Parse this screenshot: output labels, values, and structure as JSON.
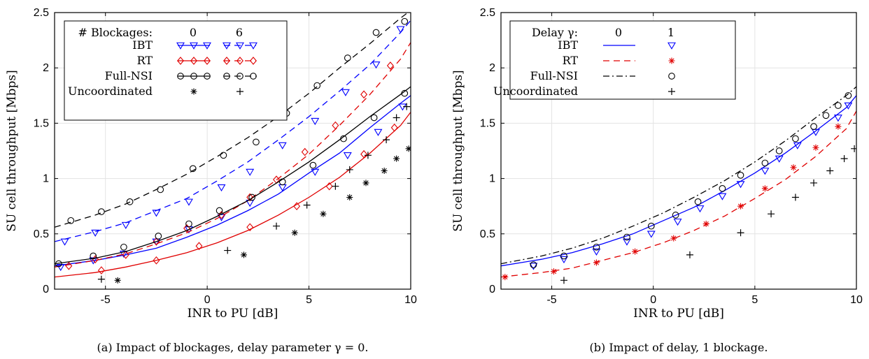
{
  "chart_data": [
    {
      "type": "line",
      "xlabel": "INR to PU [dB]",
      "ylabel": "SU cell throughput [Mbps]",
      "caption": "(a) Impact of blockages, delay parameter γ = 0.",
      "xlim": [
        -7.5,
        10
      ],
      "ylim": [
        0,
        2.5
      ],
      "xticks": [
        "-5",
        "0",
        "5",
        "10"
      ],
      "yticks": [
        "0",
        "0.5",
        "1",
        "1.5",
        "2",
        "2.5"
      ],
      "grid": true,
      "legend_position": "top-left",
      "legend_header": {
        "label": "# Blockages:",
        "col1": "0",
        "col2": "6"
      },
      "legend_rows": [
        "IBT",
        "RT",
        "Full-NSI",
        "Uncoordinated"
      ],
      "series": [
        {
          "name": "IBT",
          "variant": "0",
          "color": "#0000ff",
          "dash": "solid",
          "marker": "triangle-down",
          "x": [
            -7.5,
            -5.5,
            -4,
            -2.5,
            -1,
            0.5,
            2,
            3.5,
            5,
            6.5,
            8,
            9.5,
            10
          ],
          "y": [
            0.21,
            0.26,
            0.31,
            0.37,
            0.47,
            0.58,
            0.71,
            0.86,
            1.05,
            1.23,
            1.46,
            1.68,
            1.75
          ],
          "mx": [
            -7.2,
            -5.6,
            -4.1,
            -2.5,
            -0.9,
            0.7,
            2.1,
            3.7,
            5.3,
            6.9,
            8.4,
            9.6
          ],
          "my": [
            0.2,
            0.26,
            0.32,
            0.43,
            0.54,
            0.65,
            0.78,
            0.92,
            1.06,
            1.21,
            1.42,
            1.65
          ]
        },
        {
          "name": "IBT",
          "variant": "6",
          "color": "#0000ff",
          "dash": "dash",
          "marker": "triangle-down",
          "x": [
            -7.5,
            -5.5,
            -4,
            -2.5,
            -1,
            0.5,
            2,
            3.5,
            5,
            6.5,
            8,
            9.5,
            10
          ],
          "y": [
            0.43,
            0.52,
            0.6,
            0.71,
            0.82,
            0.98,
            1.15,
            1.35,
            1.56,
            1.79,
            2.03,
            2.32,
            2.43
          ],
          "mx": [
            -7.0,
            -5.5,
            -4.0,
            -2.5,
            -0.9,
            0.7,
            2.1,
            3.7,
            5.3,
            6.8,
            8.3,
            9.5
          ],
          "my": [
            0.43,
            0.51,
            0.58,
            0.69,
            0.79,
            0.92,
            1.06,
            1.3,
            1.52,
            1.78,
            2.03,
            2.35
          ]
        },
        {
          "name": "RT",
          "variant": "0",
          "color": "#e00000",
          "dash": "solid",
          "marker": "diamond",
          "x": [
            -7.5,
            -5.5,
            -4,
            -2.5,
            -1,
            0.5,
            2,
            3.5,
            5,
            6.5,
            8,
            9.5,
            10
          ],
          "y": [
            0.11,
            0.15,
            0.2,
            0.26,
            0.33,
            0.42,
            0.53,
            0.67,
            0.83,
            1.01,
            1.23,
            1.48,
            1.6
          ],
          "mx": [
            -5.2,
            -2.5,
            -0.4,
            2.1,
            4.4,
            6.0,
            7.7,
            9.2
          ],
          "my": [
            0.17,
            0.26,
            0.39,
            0.56,
            0.75,
            0.93,
            1.22,
            1.46
          ]
        },
        {
          "name": "RT",
          "variant": "6",
          "color": "#e00000",
          "dash": "dash",
          "marker": "diamond",
          "x": [
            -7.5,
            -5.5,
            -4,
            -2.5,
            -1,
            0.5,
            2,
            3.5,
            5,
            6.5,
            8,
            9.5,
            10
          ],
          "y": [
            0.2,
            0.26,
            0.32,
            0.41,
            0.51,
            0.64,
            0.8,
            1.0,
            1.22,
            1.48,
            1.76,
            2.08,
            2.23
          ],
          "mx": [
            -6.8,
            -5.5,
            -4.0,
            -2.5,
            -1.0,
            0.7,
            2.1,
            3.4,
            4.8,
            6.3,
            7.7,
            9.0
          ],
          "my": [
            0.21,
            0.27,
            0.31,
            0.43,
            0.55,
            0.67,
            0.83,
            0.99,
            1.24,
            1.48,
            1.76,
            2.02
          ]
        },
        {
          "name": "Full-NSI",
          "variant": "0",
          "color": "#000000",
          "dash": "solid",
          "marker": "circle",
          "x": [
            -7.5,
            -5.5,
            -4,
            -2.5,
            -1,
            0.5,
            2,
            3.5,
            5,
            6.5,
            8,
            9.5,
            10
          ],
          "y": [
            0.23,
            0.28,
            0.34,
            0.43,
            0.53,
            0.66,
            0.8,
            0.97,
            1.15,
            1.35,
            1.56,
            1.76,
            1.83
          ],
          "mx": [
            -7.3,
            -5.6,
            -4.1,
            -2.4,
            -0.9,
            0.6,
            2.2,
            3.7,
            5.2,
            6.7,
            8.2,
            9.7
          ],
          "my": [
            0.23,
            0.3,
            0.38,
            0.48,
            0.59,
            0.71,
            0.83,
            0.97,
            1.12,
            1.36,
            1.55,
            1.77
          ]
        },
        {
          "name": "Full-NSI",
          "variant": "6",
          "color": "#000000",
          "dash": "dash",
          "marker": "circle",
          "x": [
            -7.5,
            -5.5,
            -4,
            -2.5,
            -1,
            0.5,
            2,
            3.5,
            5,
            6.5,
            8,
            9.5,
            10
          ],
          "y": [
            0.56,
            0.67,
            0.77,
            0.9,
            1.04,
            1.2,
            1.37,
            1.56,
            1.77,
            2.0,
            2.22,
            2.45,
            2.52
          ],
          "mx": [
            -6.7,
            -5.2,
            -3.8,
            -2.3,
            -0.7,
            0.8,
            2.4,
            3.9,
            5.4,
            6.9,
            8.3,
            9.7
          ],
          "my": [
            0.62,
            0.7,
            0.79,
            0.9,
            1.09,
            1.21,
            1.33,
            1.59,
            1.84,
            2.09,
            2.32,
            2.42
          ]
        },
        {
          "name": "Uncoordinated",
          "variant": "0",
          "color": "#000000",
          "dash": "none",
          "marker": "star",
          "mx": [
            -4.4,
            1.8,
            4.3,
            5.7,
            7.0,
            7.8,
            8.7,
            9.3,
            9.9
          ],
          "my": [
            0.08,
            0.31,
            0.51,
            0.68,
            0.83,
            0.96,
            1.07,
            1.18,
            1.27
          ]
        },
        {
          "name": "Uncoordinated",
          "variant": "6",
          "color": "#000000",
          "dash": "none",
          "marker": "plus",
          "mx": [
            -5.2,
            1.0,
            3.4,
            4.9,
            6.3,
            7.0,
            7.9,
            8.8,
            9.3,
            9.8
          ],
          "my": [
            0.09,
            0.35,
            0.57,
            0.76,
            0.93,
            1.08,
            1.21,
            1.35,
            1.55,
            1.65
          ]
        }
      ]
    },
    {
      "type": "line",
      "xlabel": "INR to PU [dB]",
      "ylabel": "SU cell throughput [Mbps]",
      "caption": "(b) Impact of delay, 1 blockage.",
      "xlim": [
        -7.5,
        10
      ],
      "ylim": [
        0,
        2.5
      ],
      "xticks": [
        "-5",
        "0",
        "5",
        "10"
      ],
      "yticks": [
        "0",
        "0.5",
        "1",
        "1.5",
        "2",
        "2.5"
      ],
      "grid": true,
      "legend_position": "top-left",
      "legend_header": {
        "label": "Delay γ:",
        "col1": "0",
        "col2": "1"
      },
      "legend_rows": [
        "IBT",
        "RT",
        "Full-NSI",
        "Uncoordinated"
      ],
      "series": [
        {
          "name": "IBT",
          "variant": "0",
          "color": "#0000ff",
          "dash": "solid",
          "marker": "none",
          "x": [
            -7.5,
            -5.5,
            -4,
            -2.5,
            -1,
            0.5,
            2,
            3.5,
            5,
            6.5,
            8,
            9.5,
            10
          ],
          "y": [
            0.21,
            0.27,
            0.33,
            0.41,
            0.5,
            0.62,
            0.74,
            0.89,
            1.05,
            1.23,
            1.43,
            1.64,
            1.75
          ]
        },
        {
          "name": "IBT",
          "variant": "1",
          "color": "#0000ff",
          "dash": "none",
          "marker": "triangle-down",
          "mx": [
            -5.9,
            -4.4,
            -2.8,
            -1.3,
            -0.1,
            1.2,
            2.3,
            3.4,
            4.3,
            5.5,
            6.2,
            7.1,
            8.0,
            9.1,
            9.6
          ],
          "my": [
            0.21,
            0.27,
            0.34,
            0.43,
            0.5,
            0.61,
            0.73,
            0.84,
            0.95,
            1.07,
            1.18,
            1.3,
            1.42,
            1.55,
            1.66
          ]
        },
        {
          "name": "RT",
          "variant": "0",
          "color": "#e00000",
          "dash": "dash",
          "marker": "none",
          "x": [
            -7.5,
            -5.5,
            -4,
            -2.5,
            -1,
            0.5,
            2,
            3.5,
            5,
            6.5,
            8,
            9.5,
            10
          ],
          "y": [
            0.11,
            0.15,
            0.19,
            0.26,
            0.33,
            0.42,
            0.53,
            0.66,
            0.82,
            0.99,
            1.2,
            1.45,
            1.61
          ]
        },
        {
          "name": "RT",
          "variant": "1",
          "color": "#e00000",
          "dash": "none",
          "marker": "star",
          "mx": [
            -7.3,
            -4.9,
            -2.8,
            -0.9,
            1.0,
            2.6,
            4.3,
            5.5,
            6.9,
            8.0,
            9.1
          ],
          "my": [
            0.11,
            0.16,
            0.24,
            0.34,
            0.46,
            0.59,
            0.75,
            0.91,
            1.1,
            1.28,
            1.47
          ]
        },
        {
          "name": "Full-NSI",
          "variant": "0",
          "color": "#000000",
          "dash": "dashdot",
          "marker": "none",
          "x": [
            -7.5,
            -5.5,
            -4,
            -2.5,
            -1,
            0.5,
            2,
            3.5,
            5,
            6.5,
            8,
            9.5,
            10
          ],
          "y": [
            0.23,
            0.3,
            0.37,
            0.46,
            0.57,
            0.69,
            0.83,
            0.98,
            1.15,
            1.34,
            1.55,
            1.75,
            1.83
          ]
        },
        {
          "name": "Full-NSI",
          "variant": "1",
          "color": "#000000",
          "dash": "none",
          "marker": "circle",
          "mx": [
            -5.9,
            -4.4,
            -2.8,
            -1.3,
            -0.1,
            1.1,
            2.2,
            3.4,
            4.3,
            5.5,
            6.2,
            7.0,
            7.9,
            8.5,
            9.1,
            9.6
          ],
          "my": [
            0.22,
            0.3,
            0.38,
            0.47,
            0.57,
            0.67,
            0.79,
            0.91,
            1.03,
            1.14,
            1.25,
            1.36,
            1.47,
            1.57,
            1.66,
            1.75
          ]
        },
        {
          "name": "Uncoordinated",
          "variant": "1",
          "color": "#000000",
          "dash": "none",
          "marker": "plus",
          "mx": [
            -4.4,
            1.8,
            4.3,
            5.8,
            7.0,
            7.9,
            8.7,
            9.4,
            9.9
          ],
          "my": [
            0.08,
            0.31,
            0.51,
            0.68,
            0.83,
            0.96,
            1.07,
            1.18,
            1.27
          ]
        }
      ]
    }
  ]
}
